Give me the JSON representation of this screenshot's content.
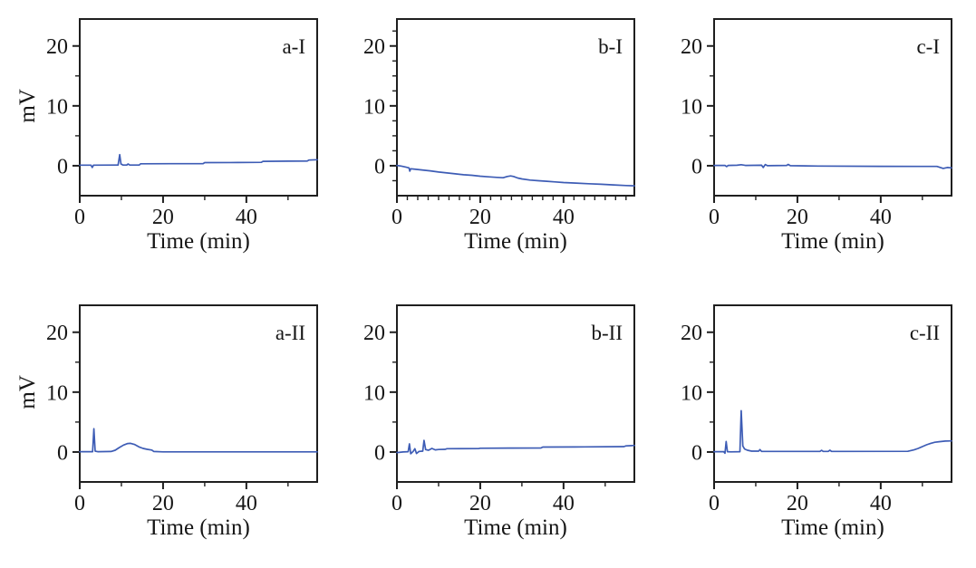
{
  "figure": {
    "line_color": "#3d5cb5",
    "axis_color": "#1f1f1f",
    "text_color": "#161616",
    "background": "#ffffff"
  },
  "chart_data": [
    {
      "type": "line",
      "panel_label": "a-I",
      "xlabel": "Time (min)",
      "ylabel": "mV",
      "show_ylabel": true,
      "xlim": [
        0,
        57
      ],
      "ylim": [
        -5,
        24.5
      ],
      "xticks": [
        0,
        20,
        40
      ],
      "yticks": [
        0,
        10,
        20
      ],
      "xminorticks": [
        10,
        30,
        50
      ],
      "yminorticks": [
        5,
        15
      ],
      "grid": false,
      "points": [
        [
          0,
          0.1
        ],
        [
          2.7,
          0.1
        ],
        [
          3,
          -0.3
        ],
        [
          3.3,
          0.1
        ],
        [
          9.2,
          0.12
        ],
        [
          9.6,
          1.85
        ],
        [
          9.9,
          0.3
        ],
        [
          10.4,
          0.12
        ],
        [
          11.3,
          0.12
        ],
        [
          11.6,
          0.3
        ],
        [
          12,
          0.12
        ],
        [
          14.3,
          0.12
        ],
        [
          14.6,
          0.32
        ],
        [
          22,
          0.34
        ],
        [
          29.6,
          0.36
        ],
        [
          30,
          0.52
        ],
        [
          38,
          0.54
        ],
        [
          43.6,
          0.56
        ],
        [
          44,
          0.73
        ],
        [
          50,
          0.76
        ],
        [
          54.6,
          0.78
        ],
        [
          55,
          0.95
        ],
        [
          57,
          1.0
        ]
      ]
    },
    {
      "type": "line",
      "panel_label": "b-I",
      "xlabel": "Time (min)",
      "ylabel": "mV",
      "show_ylabel": false,
      "xlim": [
        0,
        57
      ],
      "ylim": [
        -5,
        24.5
      ],
      "xticks": [
        0,
        20,
        40
      ],
      "yticks": [
        0,
        10,
        20
      ],
      "xminorticks": [
        2.5,
        5,
        7.5,
        10,
        12.5,
        15,
        17.5,
        22.5,
        25,
        27.5,
        30,
        32.5,
        35,
        37.5,
        42.5,
        45,
        47.5,
        50,
        52.5,
        55
      ],
      "yminorticks": [
        -2.5,
        2.5,
        5,
        7.5,
        12.5,
        15,
        17.5,
        22.5
      ],
      "grid": false,
      "points": [
        [
          0,
          0.05
        ],
        [
          1,
          -0.05
        ],
        [
          2,
          -0.2
        ],
        [
          2.9,
          -0.35
        ],
        [
          3.1,
          -0.9
        ],
        [
          3.3,
          -0.5
        ],
        [
          4,
          -0.55
        ],
        [
          6,
          -0.7
        ],
        [
          8,
          -0.85
        ],
        [
          10,
          -1.05
        ],
        [
          12,
          -1.2
        ],
        [
          14,
          -1.35
        ],
        [
          16,
          -1.5
        ],
        [
          18,
          -1.6
        ],
        [
          20,
          -1.75
        ],
        [
          22,
          -1.85
        ],
        [
          24,
          -1.95
        ],
        [
          25.5,
          -2.0
        ],
        [
          26.5,
          -1.8
        ],
        [
          27.3,
          -1.7
        ],
        [
          28,
          -1.8
        ],
        [
          29,
          -2.05
        ],
        [
          30,
          -2.2
        ],
        [
          32,
          -2.4
        ],
        [
          34,
          -2.5
        ],
        [
          36,
          -2.6
        ],
        [
          38,
          -2.7
        ],
        [
          40,
          -2.8
        ],
        [
          43,
          -2.9
        ],
        [
          46,
          -3.0
        ],
        [
          49,
          -3.1
        ],
        [
          52,
          -3.2
        ],
        [
          55,
          -3.3
        ],
        [
          57,
          -3.35
        ]
      ]
    },
    {
      "type": "line",
      "panel_label": "c-I",
      "xlabel": "Time (min)",
      "ylabel": "mV",
      "show_ylabel": false,
      "xlim": [
        0,
        57
      ],
      "ylim": [
        -5,
        24.5
      ],
      "xticks": [
        0,
        20,
        40
      ],
      "yticks": [
        0,
        10,
        20
      ],
      "xminorticks": [
        10,
        30,
        50
      ],
      "yminorticks": [
        5,
        15
      ],
      "grid": false,
      "points": [
        [
          0,
          0.05
        ],
        [
          2.6,
          0.05
        ],
        [
          3,
          -0.15
        ],
        [
          3.4,
          0.05
        ],
        [
          5.5,
          0.08
        ],
        [
          6.5,
          0.18
        ],
        [
          7.5,
          0.05
        ],
        [
          11.4,
          0.08
        ],
        [
          11.8,
          -0.3
        ],
        [
          12.3,
          0.2
        ],
        [
          12.8,
          0.0
        ],
        [
          17.4,
          0.05
        ],
        [
          17.8,
          0.22
        ],
        [
          18.3,
          0.0
        ],
        [
          25,
          -0.05
        ],
        [
          40,
          -0.1
        ],
        [
          53.5,
          -0.12
        ],
        [
          55,
          -0.45
        ],
        [
          56,
          -0.3
        ],
        [
          57,
          -0.35
        ]
      ]
    },
    {
      "type": "line",
      "panel_label": "a-II",
      "xlabel": "Time (min)",
      "ylabel": "mV",
      "show_ylabel": true,
      "xlim": [
        0,
        57
      ],
      "ylim": [
        -5,
        24.5
      ],
      "xticks": [
        0,
        20,
        40
      ],
      "yticks": [
        0,
        10,
        20
      ],
      "xminorticks": [
        10,
        30,
        50
      ],
      "yminorticks": [
        5,
        15
      ],
      "grid": false,
      "points": [
        [
          0,
          0.05
        ],
        [
          3.1,
          0.05
        ],
        [
          3.4,
          3.9
        ],
        [
          3.7,
          0.15
        ],
        [
          4.3,
          0.05
        ],
        [
          7.5,
          0.08
        ],
        [
          8.5,
          0.3
        ],
        [
          9.5,
          0.75
        ],
        [
          10.5,
          1.15
        ],
        [
          11.5,
          1.42
        ],
        [
          12.2,
          1.45
        ],
        [
          13.2,
          1.25
        ],
        [
          14.2,
          0.85
        ],
        [
          15.2,
          0.6
        ],
        [
          16.2,
          0.45
        ],
        [
          17.3,
          0.32
        ],
        [
          17.8,
          0.08
        ],
        [
          20,
          0.03
        ],
        [
          57,
          0.03
        ]
      ]
    },
    {
      "type": "line",
      "panel_label": "b-II",
      "xlabel": "Time (min)",
      "ylabel": "mV",
      "show_ylabel": false,
      "xlim": [
        0,
        57
      ],
      "ylim": [
        -5,
        24.5
      ],
      "xticks": [
        0,
        20,
        40
      ],
      "yticks": [
        0,
        10,
        20
      ],
      "xminorticks": [
        10,
        30,
        50
      ],
      "yminorticks": [
        5,
        15
      ],
      "grid": false,
      "points": [
        [
          0,
          -0.1
        ],
        [
          1.5,
          0.0
        ],
        [
          2.7,
          0.05
        ],
        [
          3.0,
          1.35
        ],
        [
          3.3,
          -0.3
        ],
        [
          3.9,
          0.1
        ],
        [
          4.3,
          0.55
        ],
        [
          4.7,
          -0.25
        ],
        [
          5.3,
          0.1
        ],
        [
          6.2,
          0.15
        ],
        [
          6.5,
          1.95
        ],
        [
          6.9,
          0.4
        ],
        [
          7.6,
          0.3
        ],
        [
          8.4,
          0.6
        ],
        [
          9.2,
          0.35
        ],
        [
          10,
          0.42
        ],
        [
          11.6,
          0.45
        ],
        [
          12,
          0.55
        ],
        [
          19.6,
          0.57
        ],
        [
          20,
          0.63
        ],
        [
          27,
          0.66
        ],
        [
          34.6,
          0.68
        ],
        [
          35,
          0.83
        ],
        [
          45,
          0.86
        ],
        [
          54.5,
          0.9
        ],
        [
          55,
          1.02
        ],
        [
          56,
          1.05
        ],
        [
          57,
          1.1
        ]
      ]
    },
    {
      "type": "line",
      "panel_label": "c-II",
      "xlabel": "Time (min)",
      "ylabel": "mV",
      "show_ylabel": false,
      "xlim": [
        0,
        57
      ],
      "ylim": [
        -5,
        24.5
      ],
      "xticks": [
        0,
        20,
        40
      ],
      "yticks": [
        0,
        10,
        20
      ],
      "xminorticks": [
        10,
        30,
        50
      ],
      "yminorticks": [
        5,
        15
      ],
      "grid": false,
      "points": [
        [
          0,
          0.05
        ],
        [
          2.3,
          0.05
        ],
        [
          2.6,
          -0.2
        ],
        [
          2.9,
          1.75
        ],
        [
          3.2,
          0.05
        ],
        [
          4,
          0.03
        ],
        [
          6.2,
          0.05
        ],
        [
          6.5,
          6.9
        ],
        [
          6.9,
          1.0
        ],
        [
          7.3,
          0.5
        ],
        [
          8,
          0.3
        ],
        [
          9,
          0.15
        ],
        [
          10.7,
          0.15
        ],
        [
          11,
          0.4
        ],
        [
          11.4,
          0.1
        ],
        [
          12,
          0.1
        ],
        [
          25.4,
          0.1
        ],
        [
          25.8,
          0.28
        ],
        [
          26.2,
          0.1
        ],
        [
          27.4,
          0.1
        ],
        [
          27.8,
          0.3
        ],
        [
          28.2,
          0.1
        ],
        [
          30,
          0.1
        ],
        [
          46.5,
          0.12
        ],
        [
          48,
          0.35
        ],
        [
          49,
          0.6
        ],
        [
          50,
          0.9
        ],
        [
          51,
          1.2
        ],
        [
          52,
          1.45
        ],
        [
          53,
          1.62
        ],
        [
          54,
          1.72
        ],
        [
          55.5,
          1.82
        ],
        [
          57,
          1.85
        ]
      ]
    }
  ]
}
